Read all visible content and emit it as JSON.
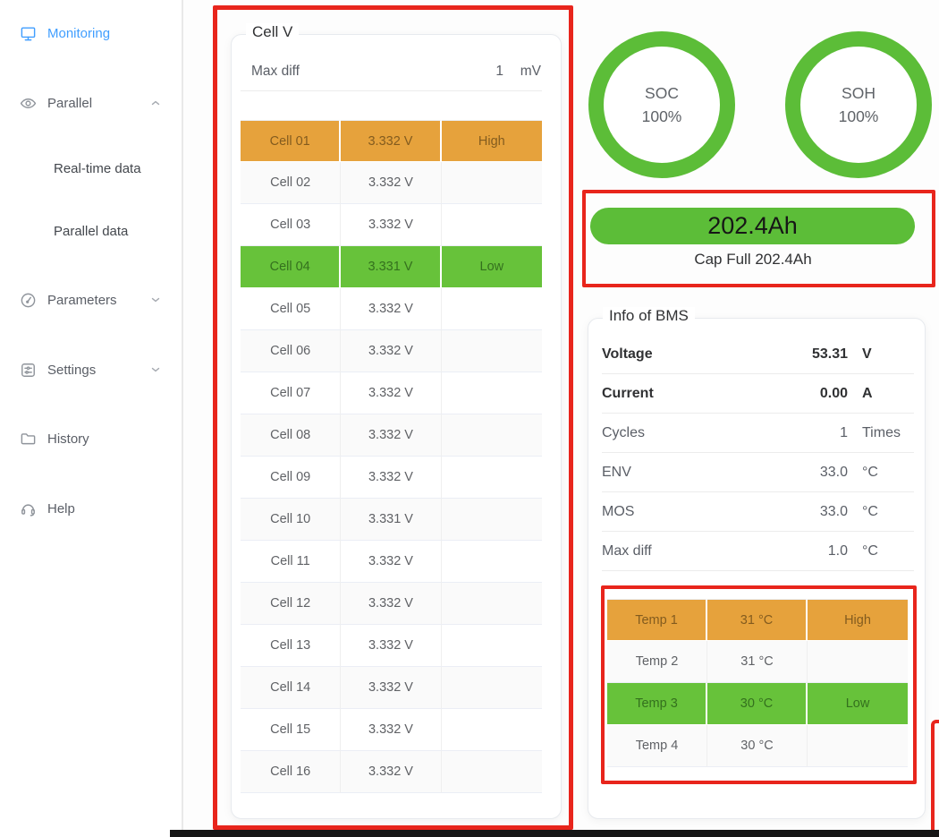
{
  "sidebar": {
    "items": [
      {
        "label": "Monitoring",
        "icon": "monitor-icon",
        "active": true
      },
      {
        "label": "Parallel",
        "icon": "eye-icon",
        "chevron": "up"
      },
      {
        "label": "Real-time data",
        "indent": true
      },
      {
        "label": "Parallel data",
        "indent": true
      },
      {
        "label": "Parameters",
        "icon": "gauge-icon",
        "chevron": "down"
      },
      {
        "label": "Settings",
        "icon": "settings-icon",
        "chevron": "down"
      },
      {
        "label": "History",
        "icon": "folder-icon"
      },
      {
        "label": "Help",
        "icon": "headset-icon"
      }
    ]
  },
  "cell_panel": {
    "title": "Cell V",
    "max_diff_label": "Max diff",
    "max_diff_value": "1",
    "max_diff_unit": "mV",
    "rows": [
      {
        "name": "Cell 01",
        "voltage": "3.332 V",
        "flag": "High",
        "state": "high"
      },
      {
        "name": "Cell 02",
        "voltage": "3.332 V",
        "flag": "",
        "state": ""
      },
      {
        "name": "Cell 03",
        "voltage": "3.332 V",
        "flag": "",
        "state": ""
      },
      {
        "name": "Cell 04",
        "voltage": "3.331 V",
        "flag": "Low",
        "state": "low"
      },
      {
        "name": "Cell 05",
        "voltage": "3.332 V",
        "flag": "",
        "state": ""
      },
      {
        "name": "Cell 06",
        "voltage": "3.332 V",
        "flag": "",
        "state": ""
      },
      {
        "name": "Cell 07",
        "voltage": "3.332 V",
        "flag": "",
        "state": ""
      },
      {
        "name": "Cell 08",
        "voltage": "3.332 V",
        "flag": "",
        "state": ""
      },
      {
        "name": "Cell 09",
        "voltage": "3.332 V",
        "flag": "",
        "state": ""
      },
      {
        "name": "Cell 10",
        "voltage": "3.331 V",
        "flag": "",
        "state": ""
      },
      {
        "name": "Cell 11",
        "voltage": "3.332 V",
        "flag": "",
        "state": ""
      },
      {
        "name": "Cell 12",
        "voltage": "3.332 V",
        "flag": "",
        "state": ""
      },
      {
        "name": "Cell 13",
        "voltage": "3.332 V",
        "flag": "",
        "state": ""
      },
      {
        "name": "Cell 14",
        "voltage": "3.332 V",
        "flag": "",
        "state": ""
      },
      {
        "name": "Cell 15",
        "voltage": "3.332 V",
        "flag": "",
        "state": ""
      },
      {
        "name": "Cell 16",
        "voltage": "3.332 V",
        "flag": "",
        "state": ""
      }
    ]
  },
  "gauges": [
    {
      "label": "SOC",
      "value": "100%"
    },
    {
      "label": "SOH",
      "value": "100%"
    }
  ],
  "capacity": {
    "pill_text": "202.4Ah",
    "caption": "Cap Full 202.4Ah"
  },
  "bms_panel": {
    "title": "Info of BMS",
    "info_rows": [
      {
        "label": "Voltage",
        "value": "53.31",
        "unit": "V",
        "bold": true
      },
      {
        "label": "Current",
        "value": "0.00",
        "unit": "A",
        "bold": true
      },
      {
        "label": "Cycles",
        "value": "1",
        "unit": "Times",
        "bold": false
      },
      {
        "label": "ENV",
        "value": "33.0",
        "unit": "°C",
        "bold": false
      },
      {
        "label": "MOS",
        "value": "33.0",
        "unit": "°C",
        "bold": false
      },
      {
        "label": "Max diff",
        "value": "1.0",
        "unit": "°C",
        "bold": false
      }
    ],
    "temp_rows": [
      {
        "name": "Temp 1",
        "value": "31 °C",
        "flag": "High",
        "state": "high"
      },
      {
        "name": "Temp 2",
        "value": "31 °C",
        "flag": "",
        "state": ""
      },
      {
        "name": "Temp 3",
        "value": "30 °C",
        "flag": "Low",
        "state": "low"
      },
      {
        "name": "Temp 4",
        "value": "30 °C",
        "flag": "",
        "state": ""
      }
    ]
  },
  "colors": {
    "accent_blue": "#409eff",
    "warning_orange": "#e6a23c",
    "success_green": "#5cbd38",
    "annotation_red": "#e8251c"
  }
}
